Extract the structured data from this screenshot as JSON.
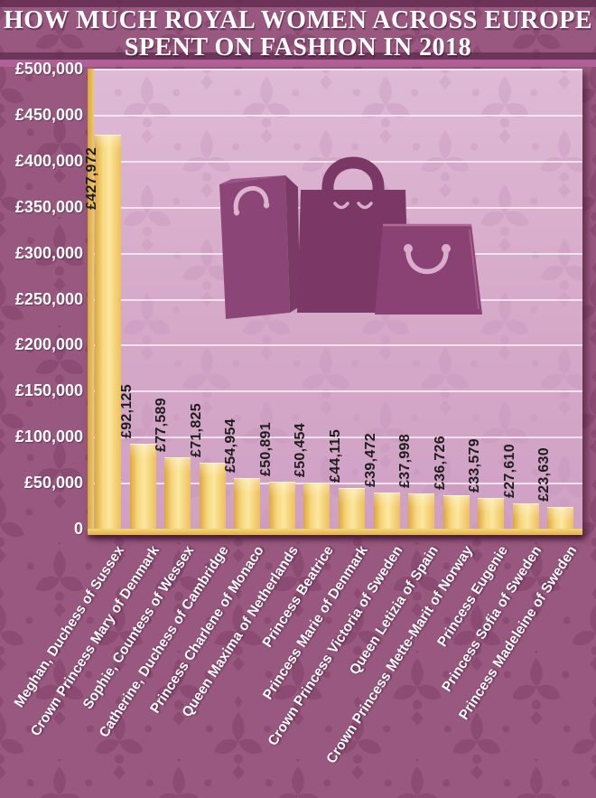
{
  "title": {
    "line1": "HOW MUCH ROYAL WOMEN ACROSS EUROPE",
    "line2": "SPENT ON FASHION IN 2018"
  },
  "chart_data": {
    "type": "bar",
    "title": "How much royal women across Europe spent on fashion in 2018",
    "currency": "GBP",
    "categories": [
      "Meghan, Duchess of Sussex",
      "Crown Princess Mary of Denmark",
      "Sophie, Countess of Wessex",
      "Catherine, Duchess of Cambridge",
      "Princess Charlene of Monaco",
      "Queen Maxima of Netherlands",
      "Princess Beatrice",
      "Princess Marie of Denmark",
      "Crown Princess Victoria of Sweden",
      "Queen Letizia of Spain",
      "Crown Princess Mette-Marit of Norway",
      "Princess Eugenie",
      "Princess Sofia of Sweden",
      "Princess Madeleine of Sweden"
    ],
    "values": [
      427972,
      92125,
      77589,
      71825,
      54954,
      50891,
      50454,
      44115,
      39472,
      37998,
      36726,
      33579,
      27610,
      23630
    ],
    "value_labels": [
      "£427,972",
      "£92,125",
      "£77,589",
      "£71,825",
      "£54,954",
      "£50,891",
      "£50,454",
      "£44,115",
      "£39,472",
      "£37,998",
      "£36,726",
      "£33,579",
      "£27,610",
      "£23,630"
    ],
    "y_ticks": [
      "£500,000",
      "£450,000",
      "£400,000",
      "£350,000",
      "£300,000",
      "£250,000",
      "£200,000",
      "£150,000",
      "£100,000",
      "£50,000",
      "0"
    ],
    "ylim": [
      0,
      500000
    ],
    "grid": true,
    "legend": "none",
    "illustration": "shopping-bags-icon",
    "colors": {
      "background_purple": "#99587f",
      "pattern_purple": "#7d3e67",
      "plot_pink": "#d7abca",
      "gridline": "#f6ecf4",
      "bar_gold": "#f2cf6e",
      "axis_gold": "#e2af41",
      "value_text": "#1d1d1d",
      "label_text": "#ffffff",
      "bag_dark": "#7b3766",
      "bag_mid": "#8a4173"
    }
  }
}
